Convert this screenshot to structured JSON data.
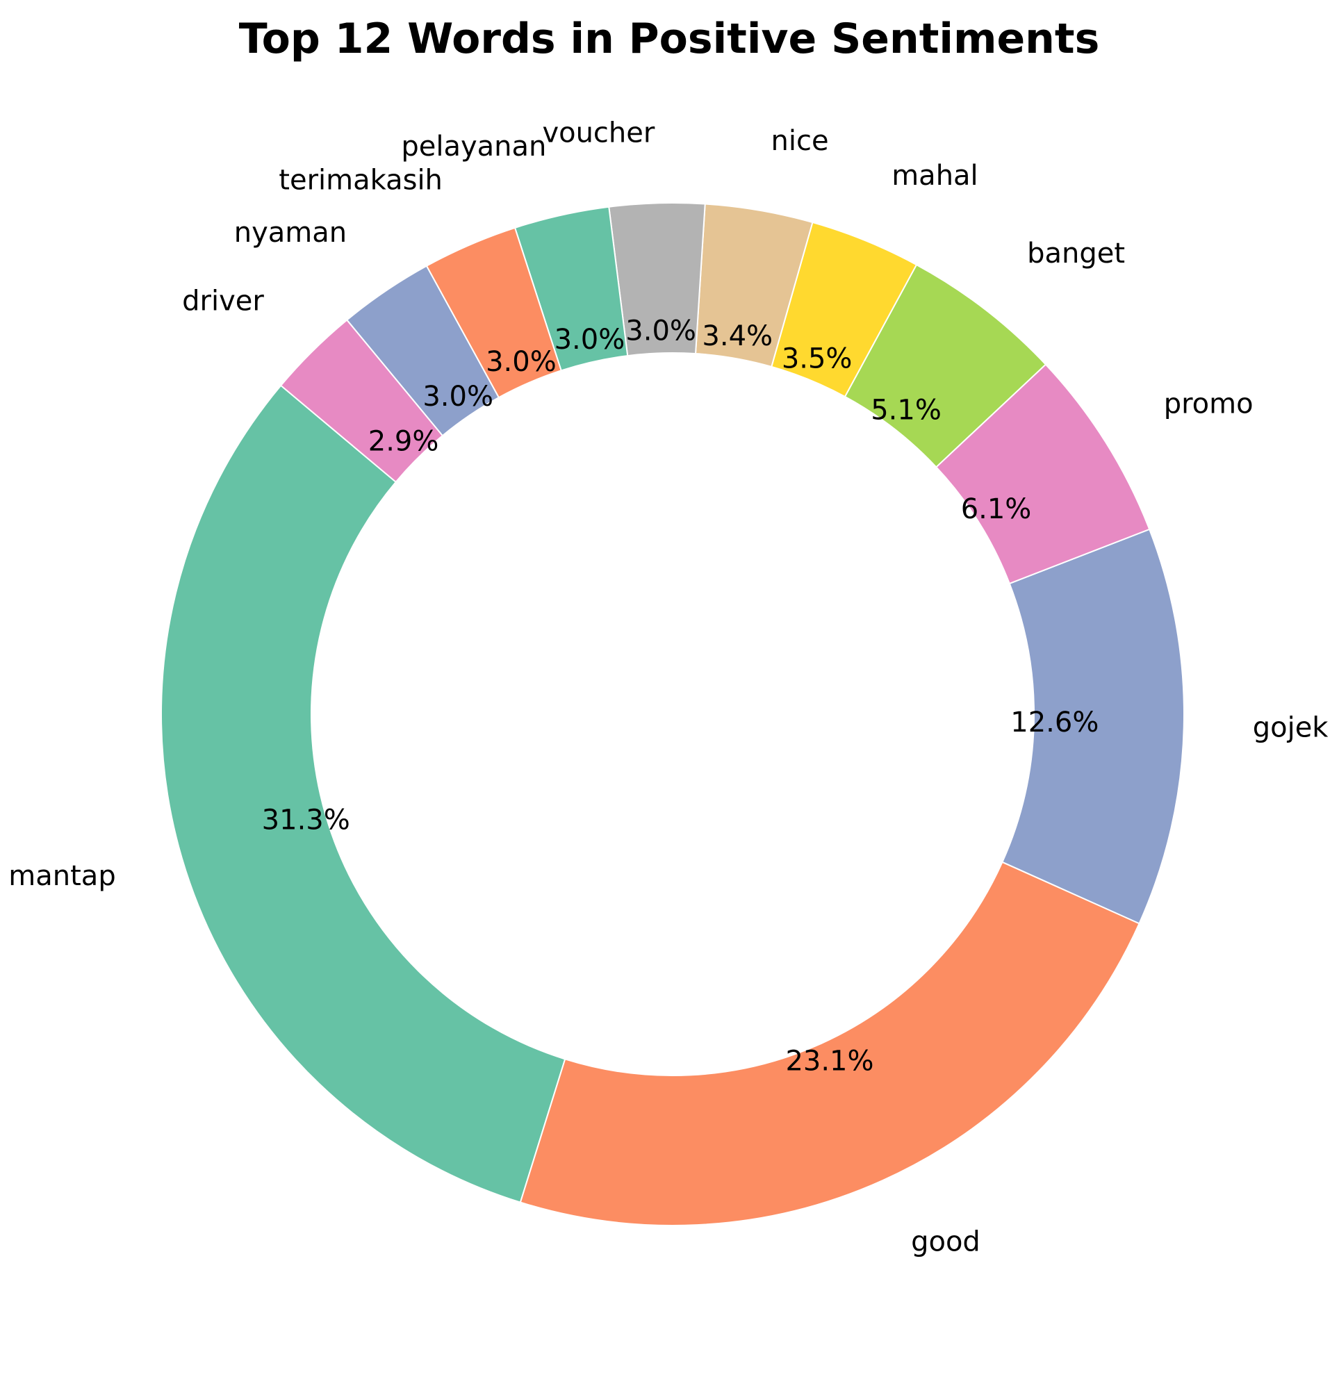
{
  "chart_data": {
    "type": "pie",
    "donut": true,
    "title": "Top 12 Words in Positive Sentiments",
    "start_angle_deg": 140,
    "direction": "counterclockwise",
    "slices": [
      {
        "label": "mantap",
        "value": 31.3,
        "pct_label": "31.3%",
        "color": "#66c2a5"
      },
      {
        "label": "good",
        "value": 23.1,
        "pct_label": "23.1%",
        "color": "#fc8d62"
      },
      {
        "label": "gojek",
        "value": 12.6,
        "pct_label": "12.6%",
        "color": "#8da0cb"
      },
      {
        "label": "promo",
        "value": 6.1,
        "pct_label": "6.1%",
        "color": "#e78ac3"
      },
      {
        "label": "banget",
        "value": 5.1,
        "pct_label": "5.1%",
        "color": "#a6d854"
      },
      {
        "label": "mahal",
        "value": 3.5,
        "pct_label": "3.5%",
        "color": "#ffd92f"
      },
      {
        "label": "nice",
        "value": 3.4,
        "pct_label": "3.4%",
        "color": "#e5c494"
      },
      {
        "label": "voucher",
        "value": 3.0,
        "pct_label": "3.0%",
        "color": "#b3b3b3"
      },
      {
        "label": "pelayanan",
        "value": 3.0,
        "pct_label": "3.0%",
        "color": "#66c2a5"
      },
      {
        "label": "terimakasih",
        "value": 3.0,
        "pct_label": "3.0%",
        "color": "#fc8d62"
      },
      {
        "label": "nyaman",
        "value": 3.0,
        "pct_label": "3.0%",
        "color": "#8da0cb"
      },
      {
        "label": "driver",
        "value": 2.9,
        "pct_label": "2.9%",
        "color": "#e78ac3"
      }
    ],
    "legend": "none"
  }
}
